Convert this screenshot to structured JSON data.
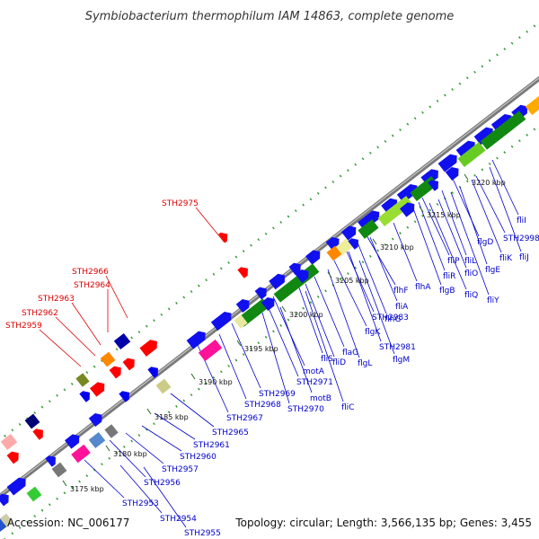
{
  "title": "Symbiobacterium thermophilum IAM 14863, complete genome",
  "footer": {
    "accession": "Accession: NC_006177",
    "summary": "Topology: circular; Length: 3,566,135 bp; Genes: 3,455"
  },
  "colors": {
    "highlight_label": "#dd0000",
    "normal_label": "#0000cc",
    "backbone": "#888888"
  },
  "kbp_labels": [
    "3175 kbp",
    "3180 kbp",
    "3185 kbp",
    "3190 kbp",
    "3195 kbp",
    "3200 kbp",
    "3205 kbp",
    "3210 kbp",
    "3215 kbp",
    "3220 kbp"
  ],
  "highlight_genes": [
    "STH2975",
    "STH2966",
    "STH2964",
    "STH2963",
    "STH2962",
    "STH2959"
  ],
  "genes": [
    "fliI",
    "STH2998",
    "fliJ",
    "flgD",
    "fliK",
    "flgE",
    "fliP",
    "fliL",
    "fliR",
    "fliO",
    "flgB",
    "fliQ",
    "fliY",
    "flhF",
    "flhA",
    "fliA",
    "flhG",
    "STH2983",
    "flgK",
    "STH2981",
    "fliS",
    "flaG",
    "fliD",
    "flgL",
    "flgM",
    "motA",
    "STH2971",
    "STH2969",
    "motB",
    "STH2968",
    "STH2970",
    "fliC",
    "STH2967",
    "STH2965",
    "STH2961",
    "STH2960",
    "STH2957",
    "STH2956",
    "STH2953",
    "STH2954",
    "STH2955"
  ]
}
